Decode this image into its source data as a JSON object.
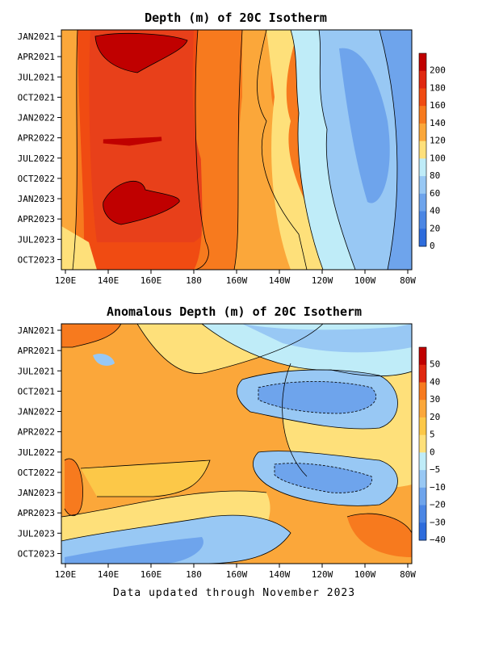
{
  "footer": "Data updated through November 2023",
  "chart_data": [
    {
      "type": "heatmap",
      "title": "Depth (m) of 20C Isotherm",
      "x_ticks": [
        "120E",
        "140E",
        "160E",
        "180",
        "160W",
        "140W",
        "120W",
        "100W",
        "80W"
      ],
      "y_ticks": [
        "JAN2021",
        "APR2021",
        "JUL2021",
        "OCT2021",
        "JAN2022",
        "APR2022",
        "JUL2022",
        "OCT2022",
        "JAN2023",
        "APR2023",
        "JUL2023",
        "OCT2023"
      ],
      "colorbar": {
        "levels": [
          "200",
          "180",
          "160",
          "140",
          "120",
          "100",
          "80",
          "60",
          "40",
          "20",
          "0"
        ],
        "colors": [
          "#c00000",
          "#e02810",
          "#f04b12",
          "#f77a1e",
          "#fba73a",
          "#fee07a",
          "#bfecf8",
          "#98c8f4",
          "#6ea4ec",
          "#4b86e4",
          "#2e6cdc"
        ]
      },
      "xlim": [
        "120E",
        "80W"
      ],
      "ylim": [
        "JAN2021",
        "NOV2023"
      ]
    },
    {
      "type": "heatmap",
      "title": "Anomalous Depth (m) of 20C Isotherm",
      "x_ticks": [
        "120E",
        "140E",
        "160E",
        "180",
        "160W",
        "140W",
        "120W",
        "100W",
        "80W"
      ],
      "y_ticks": [
        "JAN2021",
        "APR2021",
        "JUL2021",
        "OCT2021",
        "JAN2022",
        "APR2022",
        "JUL2022",
        "OCT2022",
        "JAN2023",
        "APR2023",
        "JUL2023",
        "OCT2023"
      ],
      "colorbar": {
        "levels": [
          "50",
          "40",
          "30",
          "20",
          "5",
          "0",
          "−5",
          "−10",
          "−20",
          "−30",
          "−40"
        ],
        "colors": [
          "#c00000",
          "#e02810",
          "#f77a1e",
          "#fba73a",
          "#fcc848",
          "#fee07a",
          "#bfecf8",
          "#98c8f4",
          "#6ea4ec",
          "#4b86e4",
          "#2e6cdc"
        ]
      },
      "xlim": [
        "120E",
        "80W"
      ],
      "ylim": [
        "JAN2021",
        "NOV2023"
      ]
    }
  ]
}
